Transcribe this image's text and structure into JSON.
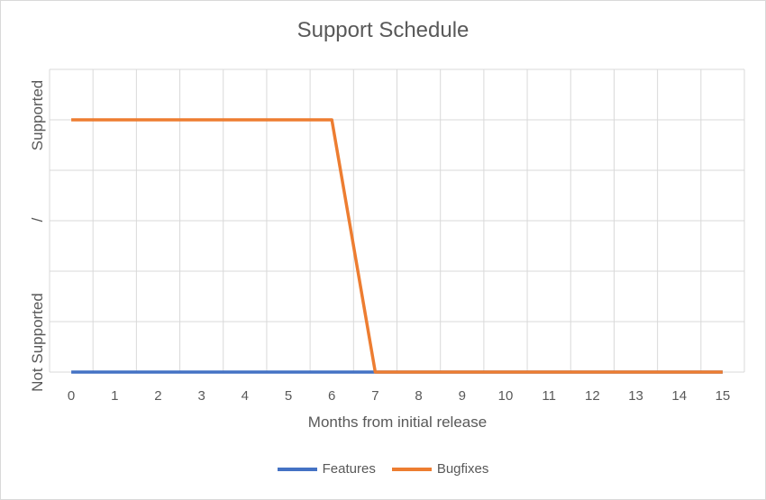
{
  "chart_data": {
    "type": "line",
    "title": "Support Schedule",
    "xlabel": "Months from initial release",
    "ylabel_top": "Supported",
    "ylabel_mid": "/",
    "ylabel_bottom": "Not Supported",
    "x": [
      0,
      1,
      2,
      3,
      4,
      5,
      6,
      7,
      8,
      9,
      10,
      11,
      12,
      13,
      14,
      15
    ],
    "xticks": [
      "0",
      "1",
      "2",
      "3",
      "4",
      "5",
      "6",
      "7",
      "8",
      "9",
      "10",
      "11",
      "12",
      "13",
      "14",
      "15"
    ],
    "ylim": [
      0,
      1.2
    ],
    "grid": true,
    "legend_position": "bottom",
    "series": [
      {
        "name": "Features",
        "color": "#4472C4",
        "values": [
          0,
          0,
          0,
          0,
          0,
          0,
          0,
          0,
          0,
          0,
          0,
          0,
          0,
          0,
          0,
          0
        ]
      },
      {
        "name": "Bugfixes",
        "color": "#ED7D31",
        "values": [
          1,
          1,
          1,
          1,
          1,
          1,
          1,
          0,
          0,
          0,
          0,
          0,
          0,
          0,
          0,
          0
        ]
      }
    ]
  }
}
